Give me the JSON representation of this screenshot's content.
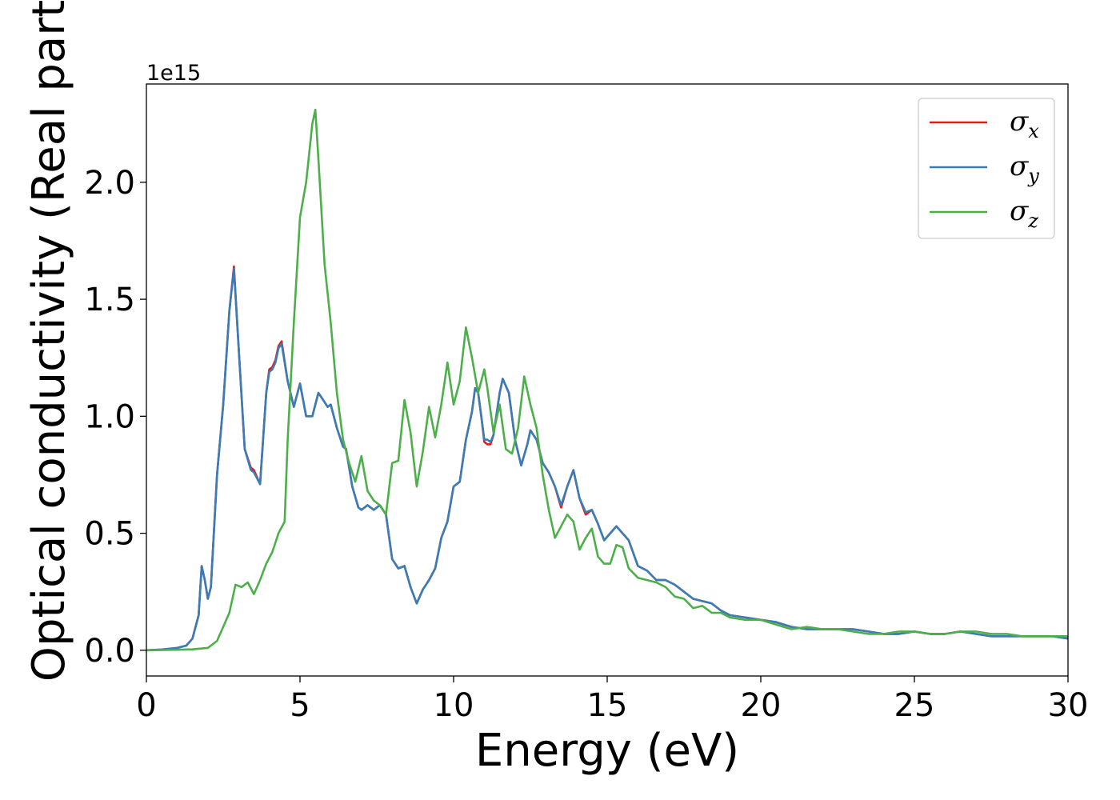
{
  "chart_data": {
    "type": "line",
    "title": "",
    "xlabel": "Energy (eV)",
    "ylabel": "Optical conductivity (Real part)",
    "y_offset_label": "1e15",
    "xlim": [
      0,
      30
    ],
    "ylim": [
      -0.11,
      2.42
    ],
    "xticks": [
      0,
      5,
      10,
      15,
      20,
      25,
      30
    ],
    "xtick_labels": [
      "0",
      "5",
      "10",
      "15",
      "20",
      "25",
      "30"
    ],
    "yticks": [
      0.0,
      0.5,
      1.0,
      1.5,
      2.0
    ],
    "ytick_labels": [
      "0.0",
      "0.5",
      "1.0",
      "1.5",
      "2.0"
    ],
    "grid": false,
    "legend_position": "top-right",
    "series": [
      {
        "name": "σx",
        "symbol": "σ",
        "subscript": "x",
        "color": "#e41a1c",
        "x": [
          0,
          0.5,
          1.0,
          1.3,
          1.5,
          1.7,
          1.8,
          1.9,
          2.0,
          2.1,
          2.3,
          2.5,
          2.7,
          2.85,
          3.0,
          3.2,
          3.4,
          3.5,
          3.7,
          3.9,
          4.0,
          4.1,
          4.2,
          4.3,
          4.4,
          4.6,
          4.8,
          5.0,
          5.2,
          5.4,
          5.6,
          5.7,
          5.9,
          6.0,
          6.2,
          6.4,
          6.5,
          6.7,
          6.9,
          7.0,
          7.2,
          7.4,
          7.6,
          7.8,
          8.0,
          8.2,
          8.4,
          8.6,
          8.8,
          9.0,
          9.2,
          9.4,
          9.6,
          9.8,
          10.0,
          10.2,
          10.4,
          10.6,
          10.7,
          10.8,
          10.9,
          11.0,
          11.1,
          11.2,
          11.3,
          11.5,
          11.6,
          11.8,
          12.0,
          12.2,
          12.4,
          12.5,
          12.7,
          12.9,
          13.1,
          13.3,
          13.5,
          13.7,
          13.9,
          14.1,
          14.3,
          14.5,
          14.7,
          14.9,
          15.1,
          15.3,
          15.5,
          15.7,
          16.0,
          16.3,
          16.6,
          16.9,
          17.2,
          17.5,
          17.8,
          18.1,
          18.4,
          18.7,
          19.0,
          19.5,
          20.0,
          20.5,
          21.0,
          21.5,
          22.0,
          22.5,
          23.0,
          23.5,
          24.0,
          24.5,
          25.0,
          25.5,
          26.0,
          26.5,
          27.0,
          27.5,
          28.0,
          28.5,
          29.0,
          29.5,
          30.0
        ],
        "y": [
          0.0,
          0.003,
          0.01,
          0.02,
          0.05,
          0.15,
          0.36,
          0.3,
          0.22,
          0.27,
          0.75,
          1.05,
          1.45,
          1.64,
          1.3,
          0.86,
          0.78,
          0.77,
          0.71,
          1.1,
          1.2,
          1.21,
          1.24,
          1.3,
          1.32,
          1.15,
          1.04,
          1.14,
          1.0,
          1.0,
          1.1,
          1.08,
          1.04,
          1.05,
          0.95,
          0.87,
          0.86,
          0.7,
          0.61,
          0.6,
          0.62,
          0.6,
          0.62,
          0.58,
          0.39,
          0.35,
          0.36,
          0.27,
          0.2,
          0.26,
          0.3,
          0.35,
          0.48,
          0.55,
          0.7,
          0.72,
          0.9,
          1.02,
          1.12,
          1.1,
          1.0,
          0.89,
          0.88,
          0.88,
          0.92,
          1.1,
          1.16,
          1.1,
          0.9,
          0.79,
          0.88,
          0.94,
          0.9,
          0.8,
          0.76,
          0.7,
          0.61,
          0.7,
          0.77,
          0.65,
          0.58,
          0.6,
          0.54,
          0.47,
          0.5,
          0.53,
          0.5,
          0.47,
          0.36,
          0.34,
          0.3,
          0.3,
          0.28,
          0.25,
          0.22,
          0.21,
          0.2,
          0.17,
          0.15,
          0.14,
          0.13,
          0.12,
          0.1,
          0.09,
          0.09,
          0.09,
          0.09,
          0.08,
          0.07,
          0.07,
          0.08,
          0.07,
          0.07,
          0.08,
          0.07,
          0.06,
          0.06,
          0.06,
          0.06,
          0.06,
          0.05
        ]
      },
      {
        "name": "σy",
        "symbol": "σ",
        "subscript": "y",
        "color": "#377eb8",
        "x": [
          0,
          0.5,
          1.0,
          1.3,
          1.5,
          1.7,
          1.8,
          1.9,
          2.0,
          2.1,
          2.3,
          2.5,
          2.7,
          2.85,
          3.0,
          3.2,
          3.4,
          3.5,
          3.7,
          3.9,
          4.0,
          4.1,
          4.2,
          4.3,
          4.4,
          4.6,
          4.8,
          5.0,
          5.2,
          5.4,
          5.6,
          5.7,
          5.9,
          6.0,
          6.2,
          6.4,
          6.5,
          6.7,
          6.9,
          7.0,
          7.2,
          7.4,
          7.6,
          7.8,
          8.0,
          8.2,
          8.4,
          8.6,
          8.8,
          9.0,
          9.2,
          9.4,
          9.6,
          9.8,
          10.0,
          10.2,
          10.4,
          10.6,
          10.7,
          10.8,
          10.9,
          11.0,
          11.1,
          11.2,
          11.3,
          11.5,
          11.6,
          11.8,
          12.0,
          12.2,
          12.4,
          12.5,
          12.7,
          12.9,
          13.1,
          13.3,
          13.5,
          13.7,
          13.9,
          14.1,
          14.3,
          14.5,
          14.7,
          14.9,
          15.1,
          15.3,
          15.5,
          15.7,
          16.0,
          16.3,
          16.6,
          16.9,
          17.2,
          17.5,
          17.8,
          18.1,
          18.4,
          18.7,
          19.0,
          19.5,
          20.0,
          20.5,
          21.0,
          21.5,
          22.0,
          22.5,
          23.0,
          23.5,
          24.0,
          24.5,
          25.0,
          25.5,
          26.0,
          26.5,
          27.0,
          27.5,
          28.0,
          28.5,
          29.0,
          29.5,
          30.0
        ],
        "y": [
          0.0,
          0.003,
          0.01,
          0.02,
          0.05,
          0.15,
          0.36,
          0.3,
          0.22,
          0.27,
          0.75,
          1.05,
          1.45,
          1.63,
          1.3,
          0.86,
          0.77,
          0.76,
          0.71,
          1.1,
          1.19,
          1.2,
          1.23,
          1.29,
          1.31,
          1.15,
          1.04,
          1.14,
          1.0,
          1.0,
          1.1,
          1.08,
          1.04,
          1.05,
          0.95,
          0.87,
          0.86,
          0.7,
          0.61,
          0.6,
          0.62,
          0.6,
          0.62,
          0.58,
          0.39,
          0.35,
          0.36,
          0.27,
          0.2,
          0.26,
          0.3,
          0.35,
          0.48,
          0.55,
          0.7,
          0.72,
          0.9,
          1.02,
          1.12,
          1.1,
          1.0,
          0.9,
          0.9,
          0.89,
          0.92,
          1.1,
          1.16,
          1.1,
          0.9,
          0.79,
          0.88,
          0.94,
          0.9,
          0.8,
          0.76,
          0.7,
          0.62,
          0.7,
          0.77,
          0.65,
          0.59,
          0.6,
          0.54,
          0.47,
          0.5,
          0.53,
          0.5,
          0.47,
          0.36,
          0.34,
          0.3,
          0.3,
          0.28,
          0.25,
          0.22,
          0.21,
          0.2,
          0.17,
          0.15,
          0.14,
          0.13,
          0.12,
          0.1,
          0.09,
          0.09,
          0.09,
          0.09,
          0.08,
          0.07,
          0.07,
          0.08,
          0.07,
          0.07,
          0.08,
          0.07,
          0.06,
          0.06,
          0.06,
          0.06,
          0.06,
          0.05
        ]
      },
      {
        "name": "σz",
        "symbol": "σ",
        "subscript": "z",
        "color": "#4daf4a",
        "x": [
          0,
          1.0,
          1.5,
          2.0,
          2.3,
          2.5,
          2.7,
          2.9,
          3.1,
          3.3,
          3.5,
          3.7,
          3.9,
          4.1,
          4.3,
          4.5,
          4.6,
          4.8,
          5.0,
          5.2,
          5.4,
          5.5,
          5.6,
          5.8,
          6.0,
          6.2,
          6.4,
          6.6,
          6.8,
          7.0,
          7.2,
          7.4,
          7.6,
          7.8,
          8.0,
          8.2,
          8.4,
          8.6,
          8.8,
          9.0,
          9.2,
          9.4,
          9.6,
          9.8,
          10.0,
          10.2,
          10.4,
          10.6,
          10.8,
          11.0,
          11.1,
          11.3,
          11.5,
          11.7,
          11.9,
          12.1,
          12.3,
          12.5,
          12.7,
          12.9,
          13.1,
          13.3,
          13.5,
          13.7,
          13.9,
          14.1,
          14.3,
          14.5,
          14.7,
          14.9,
          15.1,
          15.3,
          15.5,
          15.7,
          16.0,
          16.3,
          16.6,
          16.9,
          17.2,
          17.5,
          17.8,
          18.1,
          18.4,
          18.7,
          19.0,
          19.5,
          20.0,
          20.5,
          21.0,
          21.5,
          22.0,
          22.5,
          23.0,
          23.5,
          24.0,
          24.5,
          25.0,
          25.5,
          26.0,
          26.5,
          27.0,
          27.5,
          28.0,
          28.5,
          29.0,
          29.5,
          30.0
        ],
        "y": [
          0.0,
          0.002,
          0.004,
          0.01,
          0.04,
          0.1,
          0.16,
          0.28,
          0.27,
          0.29,
          0.24,
          0.3,
          0.37,
          0.42,
          0.5,
          0.55,
          0.9,
          1.4,
          1.85,
          2.0,
          2.25,
          2.31,
          2.1,
          1.65,
          1.4,
          1.1,
          0.9,
          0.8,
          0.72,
          0.83,
          0.68,
          0.64,
          0.62,
          0.58,
          0.8,
          0.81,
          1.07,
          0.93,
          0.7,
          0.85,
          1.04,
          0.91,
          1.05,
          1.23,
          1.05,
          1.15,
          1.38,
          1.25,
          1.1,
          1.2,
          1.12,
          0.93,
          1.05,
          0.86,
          0.84,
          0.95,
          1.17,
          1.05,
          0.95,
          0.75,
          0.6,
          0.48,
          0.53,
          0.58,
          0.55,
          0.43,
          0.48,
          0.52,
          0.4,
          0.37,
          0.37,
          0.45,
          0.44,
          0.35,
          0.31,
          0.3,
          0.29,
          0.27,
          0.23,
          0.22,
          0.18,
          0.19,
          0.16,
          0.16,
          0.14,
          0.13,
          0.13,
          0.11,
          0.09,
          0.1,
          0.09,
          0.09,
          0.08,
          0.07,
          0.07,
          0.08,
          0.08,
          0.07,
          0.07,
          0.08,
          0.08,
          0.07,
          0.07,
          0.06,
          0.06,
          0.06,
          0.06
        ]
      }
    ]
  }
}
